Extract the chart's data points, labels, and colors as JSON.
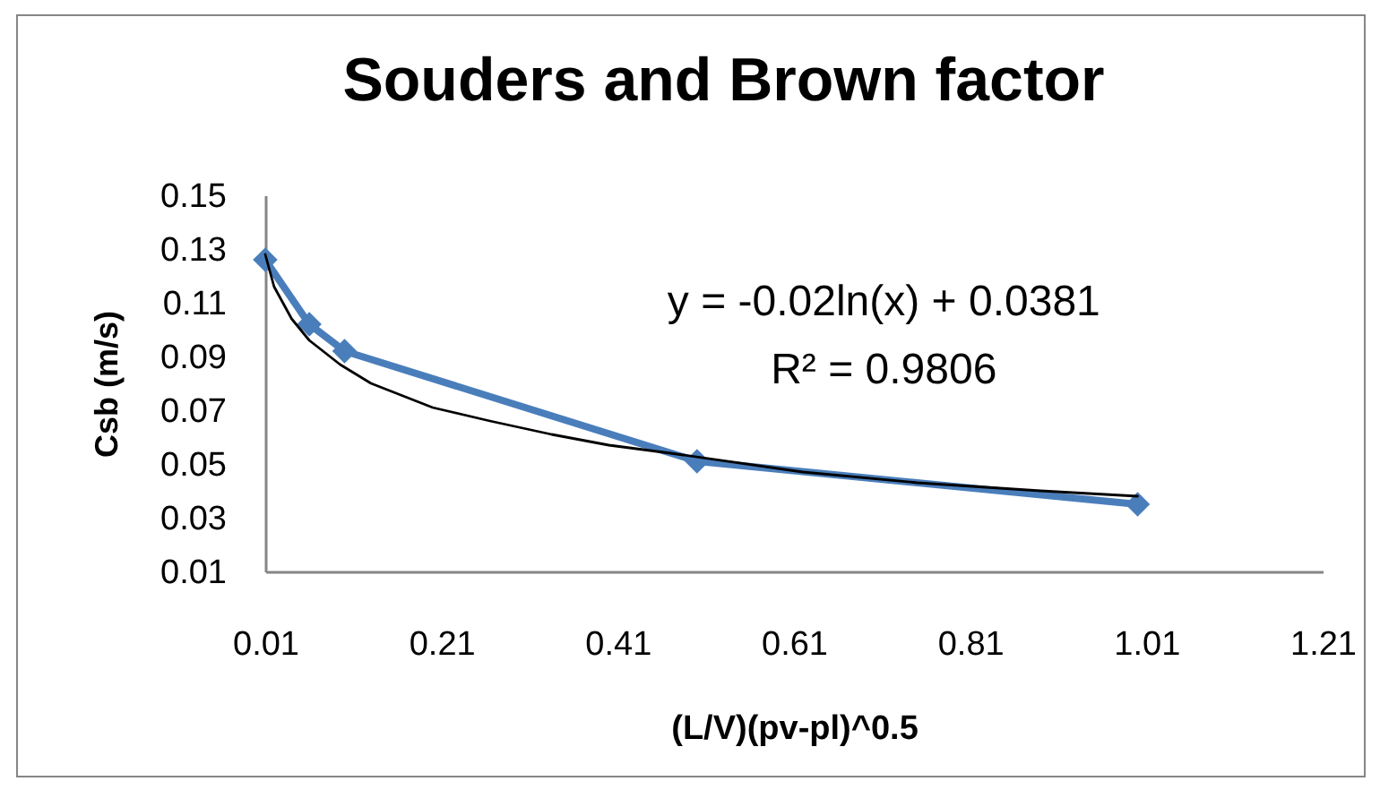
{
  "chart_data": {
    "type": "line",
    "title": "Souders and Brown factor",
    "xlabel": "(L/V)(pv-pl)^0.5",
    "ylabel": "Csb (m/s)",
    "annotations": [
      "y = -0.02ln(x) + 0.0381",
      "R² = 0.9806"
    ],
    "series": [
      {
        "color": "#4a7ebb",
        "marker": "diamond",
        "x": [
          0.01,
          0.06,
          0.1,
          0.5,
          1.0
        ],
        "values": [
          0.126,
          0.102,
          0.092,
          0.051,
          0.035
        ]
      },
      {
        "color": "#000000",
        "marker": "none",
        "x": [
          0.01,
          0.02,
          0.04,
          0.06,
          0.095,
          0.13,
          0.2,
          0.265,
          0.335,
          0.4,
          0.47,
          0.62,
          0.75,
          0.89,
          1.0
        ],
        "values": [
          0.128,
          0.116,
          0.104,
          0.096,
          0.087,
          0.08,
          0.071,
          0.066,
          0.061,
          0.057,
          0.054,
          0.047,
          0.043,
          0.04,
          0.038
        ]
      }
    ],
    "xlim": [
      0.01,
      1.21
    ],
    "xticks": [
      0.01,
      0.21,
      0.41,
      0.61,
      0.81,
      1.01,
      1.21
    ],
    "ylim": [
      0.01,
      0.15
    ],
    "yticks": [
      0.01,
      0.03,
      0.05,
      0.07,
      0.09,
      0.11,
      0.13,
      0.15
    ],
    "grid": false
  }
}
